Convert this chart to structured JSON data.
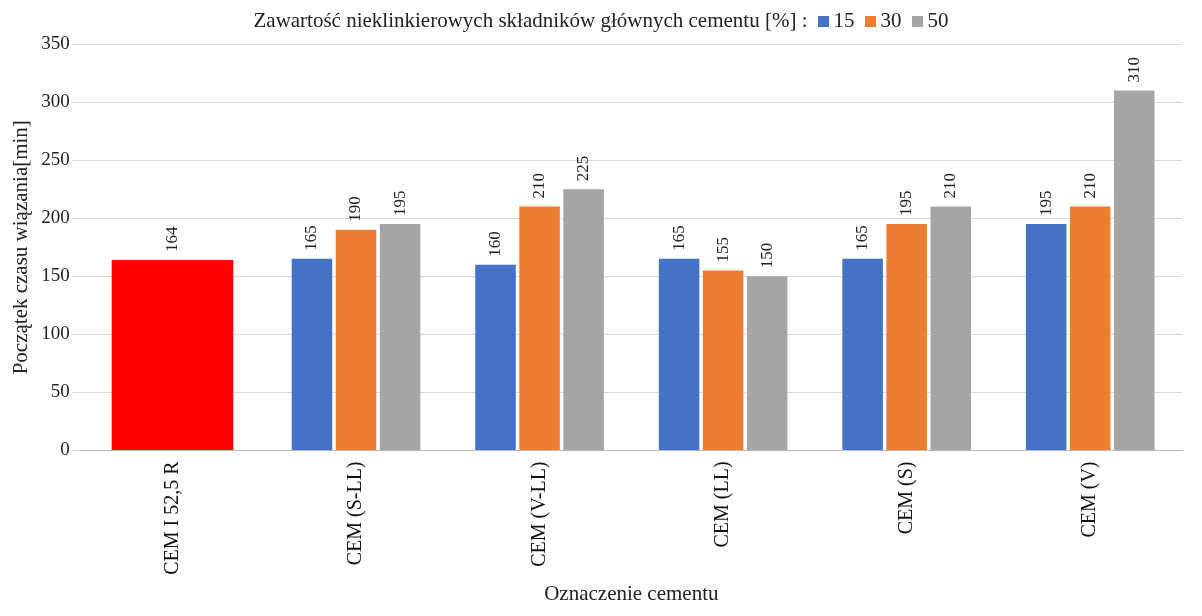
{
  "chart_data": {
    "type": "bar",
    "xlabel": "Oznaczenie cementu",
    "ylabel": "Początek czasu wiązania[min]",
    "legend_title": "Zawartość nieklinkierowych składników głównych cementu [%] :",
    "categories": [
      "CEM I 52,5 R",
      "CEM (S-LL)",
      "CEM (V-LL)",
      "CEM (LL)",
      "CEM (S)",
      "CEM (V)"
    ],
    "series": [
      {
        "color": "#ff0000",
        "values": [
          164,
          null,
          null,
          null,
          null,
          null
        ]
      },
      {
        "name": "15",
        "color": "#4472c4",
        "values": [
          null,
          165,
          160,
          165,
          165,
          195
        ]
      },
      {
        "name": "30",
        "color": "#ed7d31",
        "values": [
          null,
          190,
          210,
          155,
          195,
          210
        ]
      },
      {
        "name": "50",
        "color": "#a5a5a5",
        "values": [
          null,
          195,
          225,
          150,
          210,
          310
        ]
      }
    ],
    "ylim": [
      0,
      350
    ],
    "yticks": [
      0,
      50,
      100,
      150,
      200,
      250,
      300,
      350
    ],
    "grid": "y",
    "legend": "top",
    "data_labels": true
  }
}
